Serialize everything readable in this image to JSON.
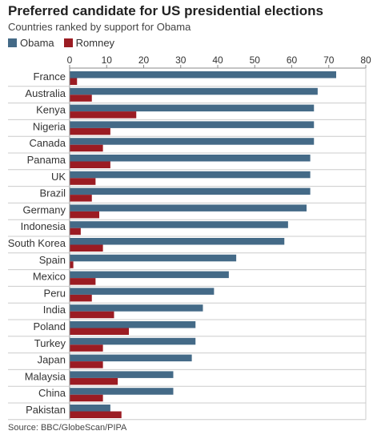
{
  "colors": {
    "obama": "#446a87",
    "romney": "#9b1c23",
    "axis": "#888888",
    "divider": "#cccccc"
  },
  "chart_data": {
    "type": "bar",
    "orientation": "horizontal",
    "title": "Preferred candidate for US presidential elections",
    "subtitle": "Countries ranked by support for Obama",
    "source": "Source: BBC/GlobeScan/PIPA",
    "xlim": [
      0,
      80
    ],
    "xticks": [
      0,
      10,
      20,
      30,
      40,
      50,
      60,
      70,
      80
    ],
    "legend_position": "top-left",
    "grid": false,
    "categories": [
      "France",
      "Australia",
      "Kenya",
      "Nigeria",
      "Canada",
      "Panama",
      "UK",
      "Brazil",
      "Germany",
      "Indonesia",
      "South Korea",
      "Spain",
      "Mexico",
      "Peru",
      "India",
      "Poland",
      "Turkey",
      "Japan",
      "Malaysia",
      "China",
      "Pakistan"
    ],
    "series": [
      {
        "name": "Obama",
        "values": [
          72,
          67,
          66,
          66,
          66,
          65,
          65,
          65,
          64,
          59,
          58,
          45,
          43,
          39,
          36,
          34,
          34,
          33,
          28,
          28,
          11
        ]
      },
      {
        "name": "Romney",
        "values": [
          2,
          6,
          18,
          11,
          9,
          11,
          7,
          6,
          8,
          3,
          9,
          1,
          7,
          6,
          12,
          16,
          9,
          9,
          13,
          9,
          14
        ]
      }
    ]
  }
}
